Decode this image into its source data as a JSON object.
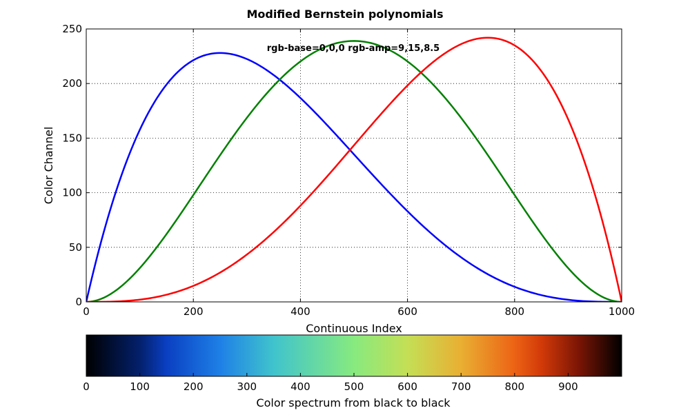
{
  "chart_data": {
    "type": "line",
    "title": "Modified Bernstein polynomials",
    "annotation": "rgb-base=0,0,0 rgb-amp=9,15,8.5",
    "xlabel": "Continuous Index",
    "ylabel": "Color Channel",
    "xlim": [
      0,
      1000
    ],
    "ylim": [
      0,
      250
    ],
    "xticks": [
      0,
      200,
      400,
      600,
      800,
      1000
    ],
    "yticks": [
      0,
      50,
      100,
      150,
      200,
      250
    ],
    "grid": true,
    "series": [
      {
        "color": "#0000ff",
        "amp": 9,
        "basis": "3*(1-t)^3*t"
      },
      {
        "color": "#008000",
        "amp": 15,
        "basis": "4*(1-t)^2*t^2"
      },
      {
        "color": "#ff0000",
        "amp": 8.5,
        "basis": "3*(1-t)*t^3"
      }
    ],
    "peaks": [
      {
        "series_color": "#0000ff",
        "x": 250,
        "y": 228
      },
      {
        "series_color": "#008000",
        "x": 500,
        "y": 239
      },
      {
        "series_color": "#ff0000",
        "x": 750,
        "y": 242
      }
    ]
  },
  "colorbar": {
    "label": "Color spectrum from black to black",
    "xlim": [
      0,
      1000
    ],
    "ticks": [
      0,
      100,
      200,
      300,
      400,
      500,
      600,
      700,
      800,
      900
    ],
    "stops": [
      {
        "value": 0,
        "color": "#000000"
      },
      {
        "value": 100,
        "color": "#03206b"
      },
      {
        "value": 150,
        "color": "#0a3fc2"
      },
      {
        "value": 250,
        "color": "#1e80e6"
      },
      {
        "value": 350,
        "color": "#40c4cc"
      },
      {
        "value": 500,
        "color": "#87ea7f"
      },
      {
        "value": 600,
        "color": "#c4df55"
      },
      {
        "value": 700,
        "color": "#e9af33"
      },
      {
        "value": 800,
        "color": "#ec6315"
      },
      {
        "value": 850,
        "color": "#d23a08"
      },
      {
        "value": 920,
        "color": "#7a1505"
      },
      {
        "value": 1000,
        "color": "#000000"
      }
    ]
  }
}
